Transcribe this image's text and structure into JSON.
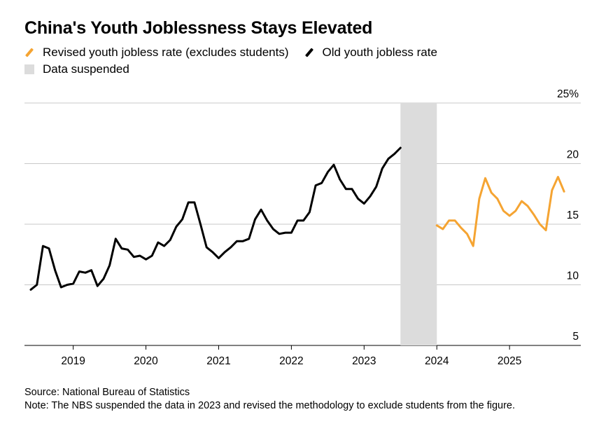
{
  "title": "China's Youth Joblessness Stays Elevated",
  "legend": {
    "revised": "Revised youth jobless rate (excludes students)",
    "old": "Old youth jobless rate",
    "suspended": "Data suspended"
  },
  "colors": {
    "revised": "#f5a432",
    "old": "#000000",
    "suspended": "#dcdcdc",
    "grid": "#c8c8c8"
  },
  "footer": {
    "source": "Source: National Bureau of Statistics",
    "note": "Note: The NBS suspended the data in 2023 and revised the methodology to exclude students from the figure."
  },
  "chart_data": {
    "type": "line",
    "title": "China's Youth Joblessness Stays Elevated",
    "xlabel": "",
    "ylabel": "",
    "ylim": [
      5,
      25
    ],
    "y_ticks": [
      5,
      10,
      15,
      20,
      25
    ],
    "y_tick_labels": [
      "5",
      "10",
      "15",
      "20",
      "25%"
    ],
    "x_ticks": [
      2019,
      2020,
      2021,
      2022,
      2023,
      2024,
      2025
    ],
    "x_tick_labels": [
      "2019",
      "2020",
      "2021",
      "2022",
      "2023",
      "2024",
      "2025"
    ],
    "xlim": [
      2018.33,
      2025.98
    ],
    "suspended_range": [
      2023.5,
      2024.0
    ],
    "series": [
      {
        "name": "Old youth jobless rate",
        "start": 2018.417,
        "values": [
          9.6,
          10.0,
          13.2,
          13.0,
          11.2,
          9.8,
          10.0,
          10.1,
          11.1,
          11.0,
          11.2,
          9.9,
          10.5,
          11.6,
          13.8,
          13.0,
          12.9,
          12.3,
          12.4,
          12.1,
          12.4,
          13.5,
          13.2,
          13.7,
          14.8,
          15.4,
          16.8,
          16.8,
          15.0,
          13.1,
          12.7,
          12.2,
          12.7,
          13.1,
          13.6,
          13.6,
          13.8,
          15.4,
          16.2,
          15.3,
          14.6,
          14.2,
          14.3,
          14.3,
          15.3,
          15.3,
          16.0,
          18.2,
          18.4,
          19.3,
          19.9,
          18.7,
          17.9,
          17.9,
          17.1,
          16.7,
          17.3,
          18.1,
          19.6,
          20.4,
          20.8,
          21.3
        ]
      },
      {
        "name": "Revised youth jobless rate (excludes students)",
        "start": 2024.0,
        "values": [
          14.9,
          14.6,
          15.3,
          15.3,
          14.7,
          14.2,
          13.2,
          17.1,
          18.8,
          17.6,
          17.1,
          16.1,
          15.7,
          16.1,
          16.9,
          16.5,
          15.8,
          15.0,
          14.5,
          17.8,
          18.9,
          17.7
        ]
      }
    ]
  }
}
